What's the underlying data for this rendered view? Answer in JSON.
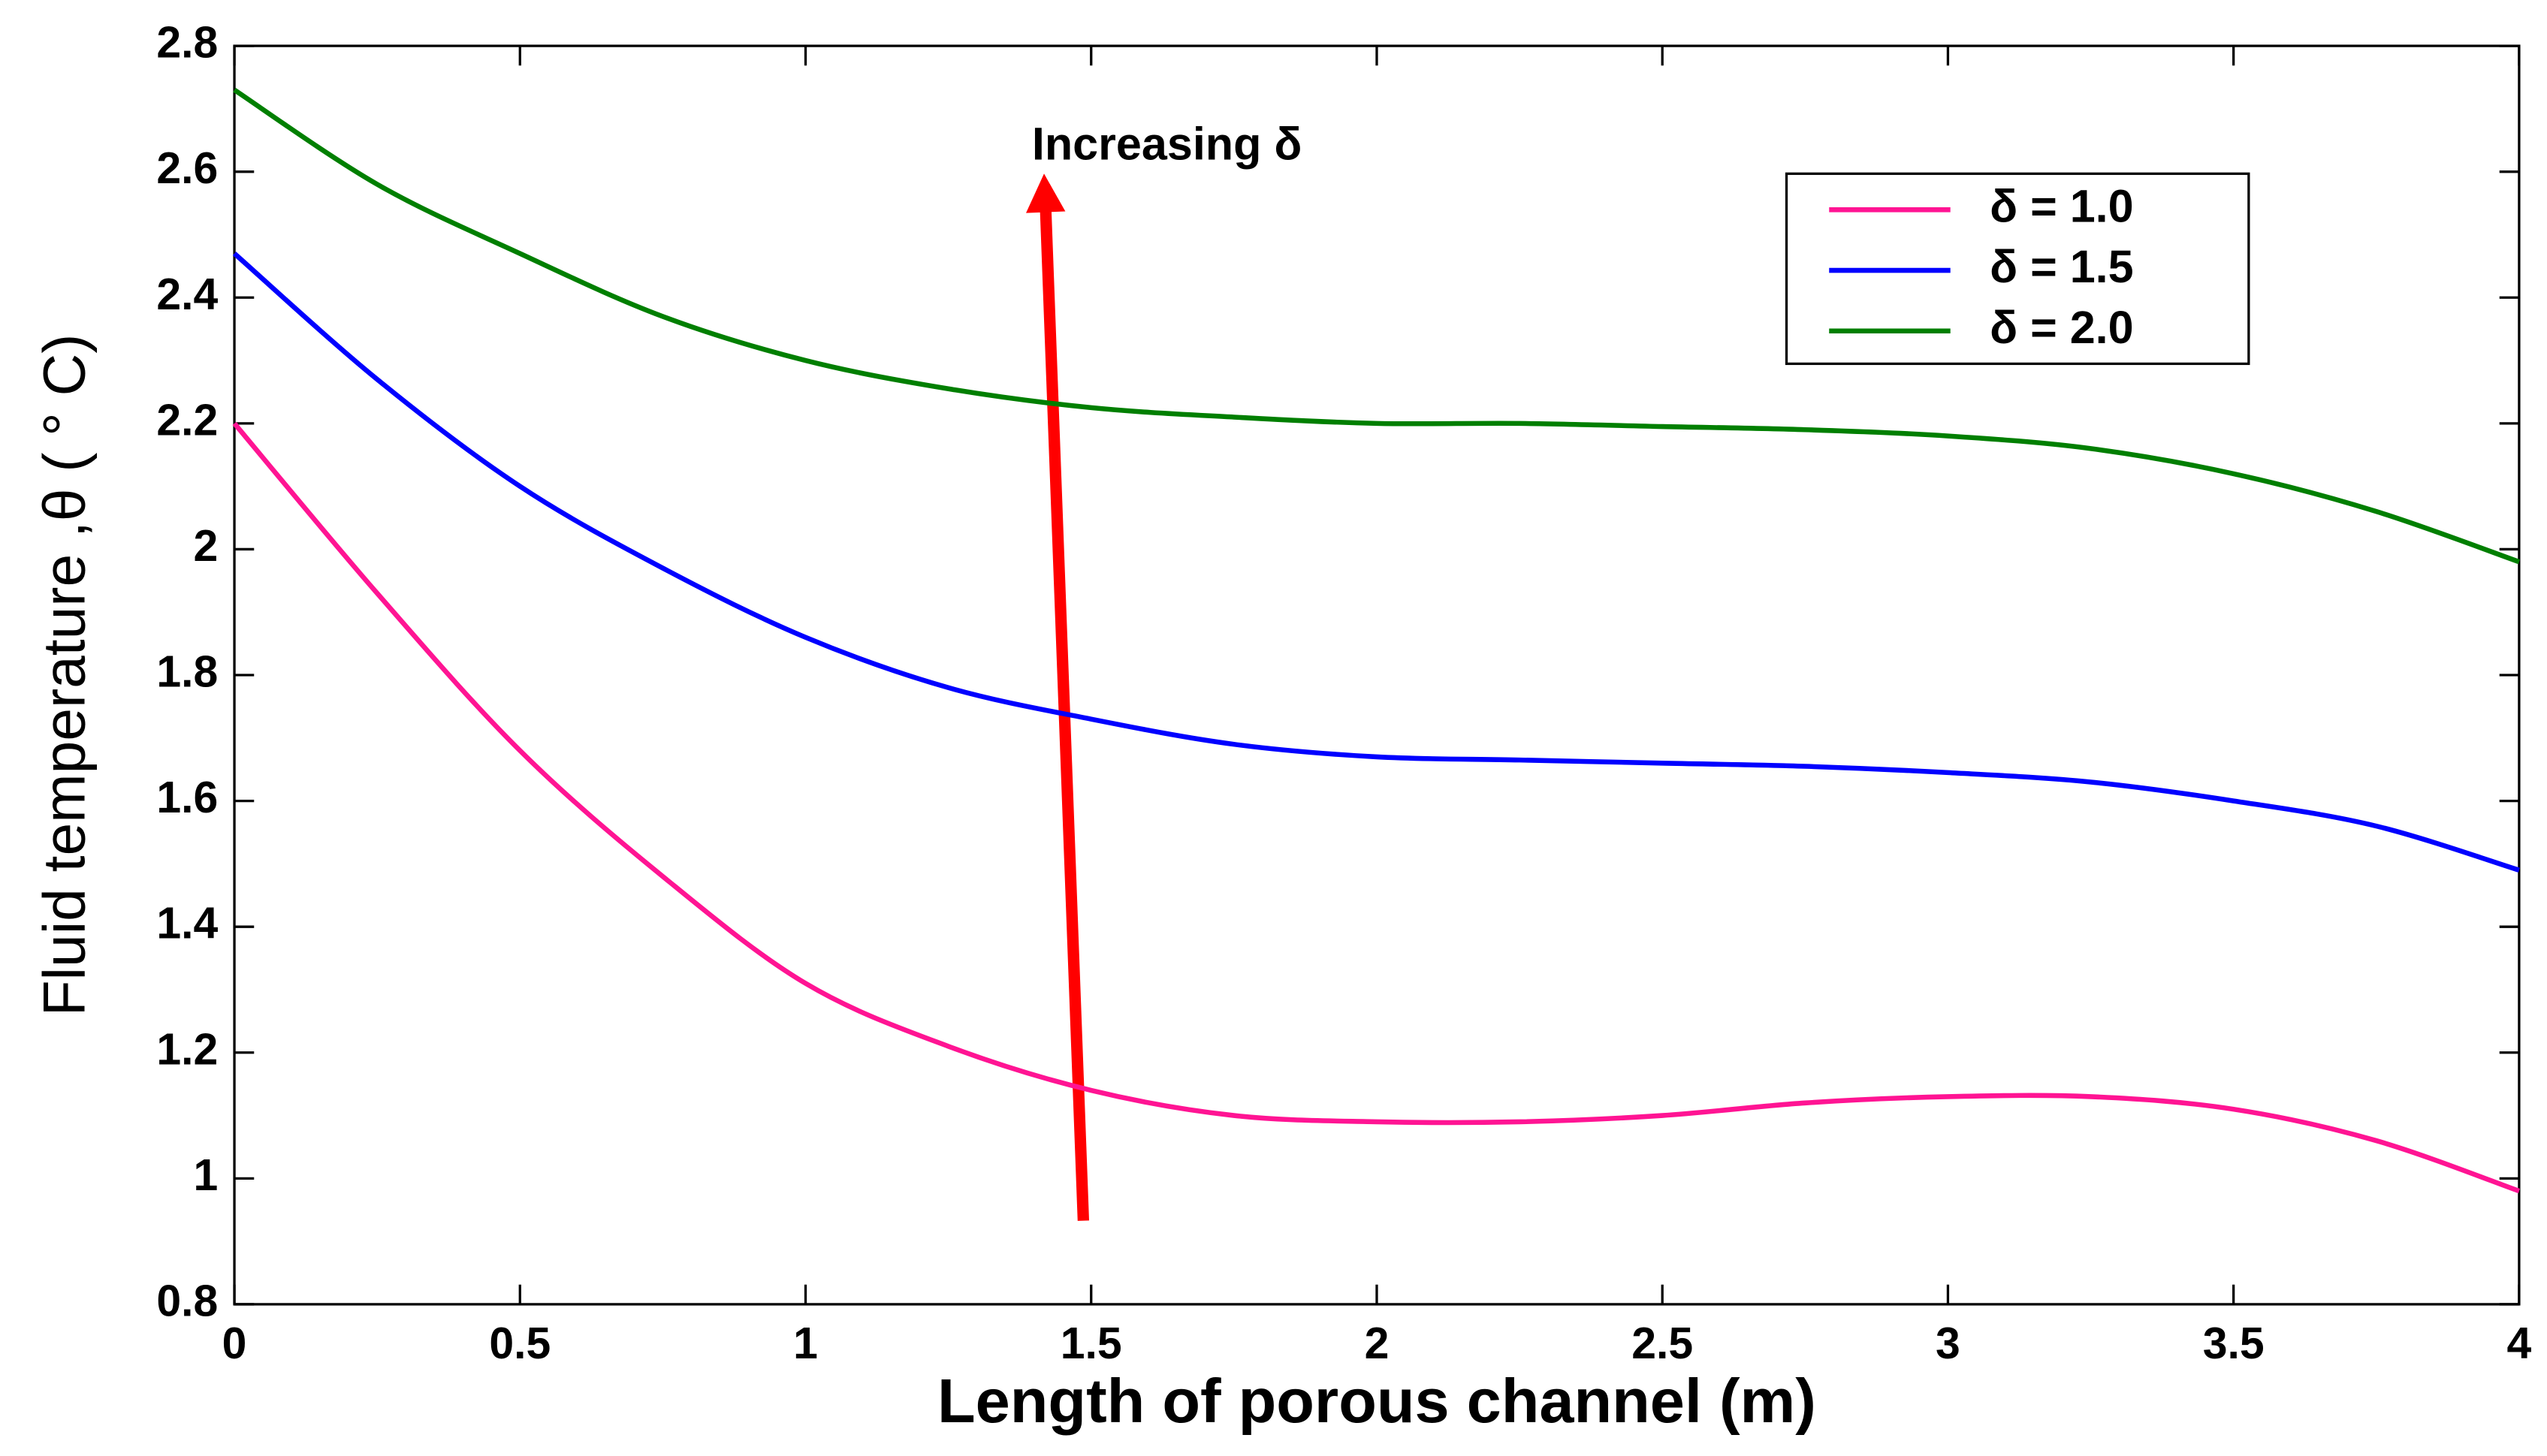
{
  "chart_data": {
    "type": "line",
    "x_label": "Length of porous channel (m)",
    "y_label": "Fluid temperature ,θ ( ° C)",
    "annotation": "Increasing δ",
    "x": [
      0,
      0.25,
      0.5,
      0.75,
      1,
      1.25,
      1.5,
      1.75,
      2,
      2.25,
      2.5,
      2.75,
      3,
      3.25,
      3.5,
      3.75,
      4
    ],
    "series": [
      {
        "name": "δ = 1.0",
        "color": "#ff1493",
        "values": [
          2.2,
          1.93,
          1.68,
          1.48,
          1.31,
          1.21,
          1.14,
          1.1,
          1.09,
          1.09,
          1.1,
          1.12,
          1.13,
          1.13,
          1.11,
          1.06,
          0.98
        ]
      },
      {
        "name": "δ = 1.5",
        "color": "#0000ff",
        "values": [
          2.47,
          2.27,
          2.1,
          1.97,
          1.86,
          1.78,
          1.73,
          1.69,
          1.67,
          1.665,
          1.66,
          1.655,
          1.645,
          1.63,
          1.6,
          1.56,
          1.49
        ]
      },
      {
        "name": "δ = 2.0",
        "color": "#007f00",
        "values": [
          2.73,
          2.58,
          2.47,
          2.37,
          2.3,
          2.255,
          2.225,
          2.21,
          2.2,
          2.2,
          2.195,
          2.19,
          2.18,
          2.16,
          2.12,
          2.06,
          1.98
        ]
      }
    ],
    "xlim": [
      0,
      4
    ],
    "xticks": [
      0,
      0.5,
      1,
      1.5,
      2,
      2.5,
      3,
      3.5,
      4
    ],
    "ylim": [
      0.8,
      2.8
    ],
    "yticks": [
      0.8,
      1,
      1.2,
      1.4,
      1.6,
      1.8,
      2,
      2.2,
      2.4,
      2.6,
      2.8
    ],
    "legend": "upper right"
  }
}
